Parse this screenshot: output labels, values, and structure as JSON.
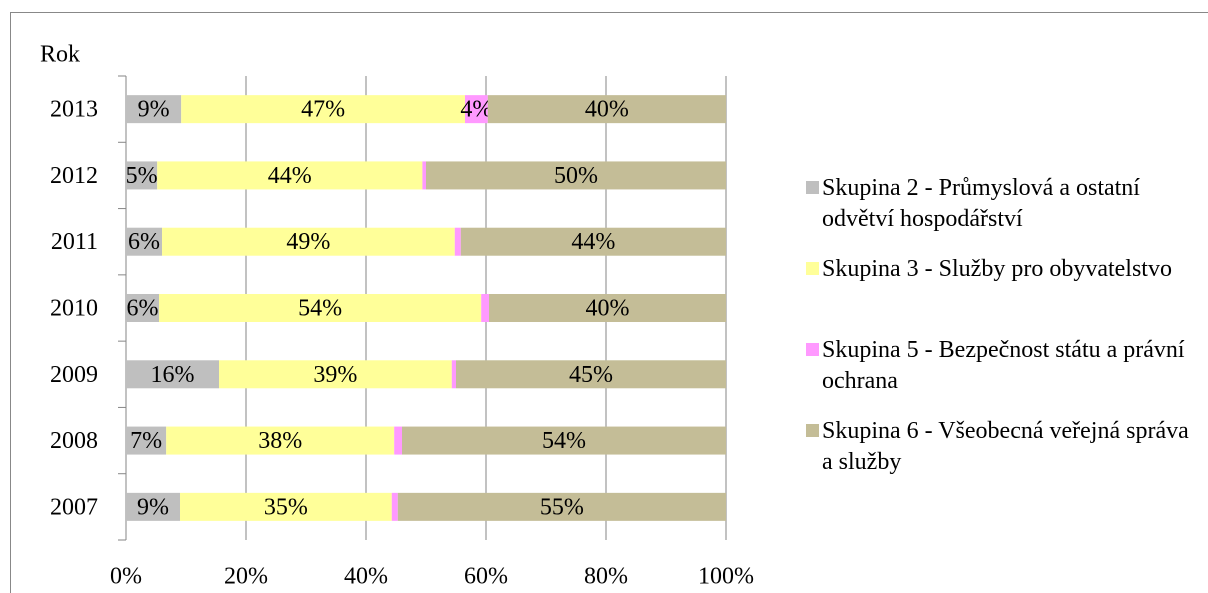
{
  "chart_data": {
    "type": "stacked_barh",
    "y_label": "Rok",
    "categories": [
      "2007",
      "2008",
      "2009",
      "2010",
      "2011",
      "2012",
      "2013"
    ],
    "series": [
      {
        "name": "Skupina 2 - Průmyslová a ostatní odvětví hospodářství",
        "color": "#bfbfbf",
        "values": [
          9.0,
          6.7,
          15.5,
          5.5,
          6.0,
          5.2,
          9.2
        ],
        "value_labels": [
          "9%",
          "7%",
          "16%",
          "6%",
          "6%",
          "5%",
          "9%"
        ]
      },
      {
        "name": "Skupina 3 - Služby pro obyvatelstvo",
        "color": "#ffff99",
        "values": [
          35.3,
          38.0,
          38.8,
          53.7,
          48.8,
          44.2,
          47.3
        ],
        "value_labels": [
          "35%",
          "38%",
          "39%",
          "54%",
          "49%",
          "44%",
          "47%"
        ]
      },
      {
        "name": "Skupina 5 - Bezpečnost státu a právní ochrana",
        "color": "#ff99ff",
        "values": [
          1.0,
          1.3,
          0.7,
          1.3,
          1.0,
          0.6,
          3.8
        ],
        "value_labels": [
          null,
          null,
          null,
          null,
          null,
          null,
          "4%"
        ]
      },
      {
        "name": "Skupina 6 - Všeobecná veřejná správa a služby",
        "color": "#c4bd97",
        "values": [
          54.7,
          54.0,
          45.0,
          39.5,
          44.2,
          50.0,
          39.7
        ],
        "value_labels": [
          "55%",
          "54%",
          "45%",
          "40%",
          "44%",
          "50%",
          "40%"
        ]
      }
    ],
    "xlim": [
      0,
      100
    ],
    "xticks": [
      {
        "value": 0,
        "label": "0%"
      },
      {
        "value": 20,
        "label": "20%"
      },
      {
        "value": 40,
        "label": "40%"
      },
      {
        "value": 60,
        "label": "60%"
      },
      {
        "value": 80,
        "label": "80%"
      },
      {
        "value": 100,
        "label": "100%"
      }
    ],
    "grid": true,
    "legend": "right"
  }
}
